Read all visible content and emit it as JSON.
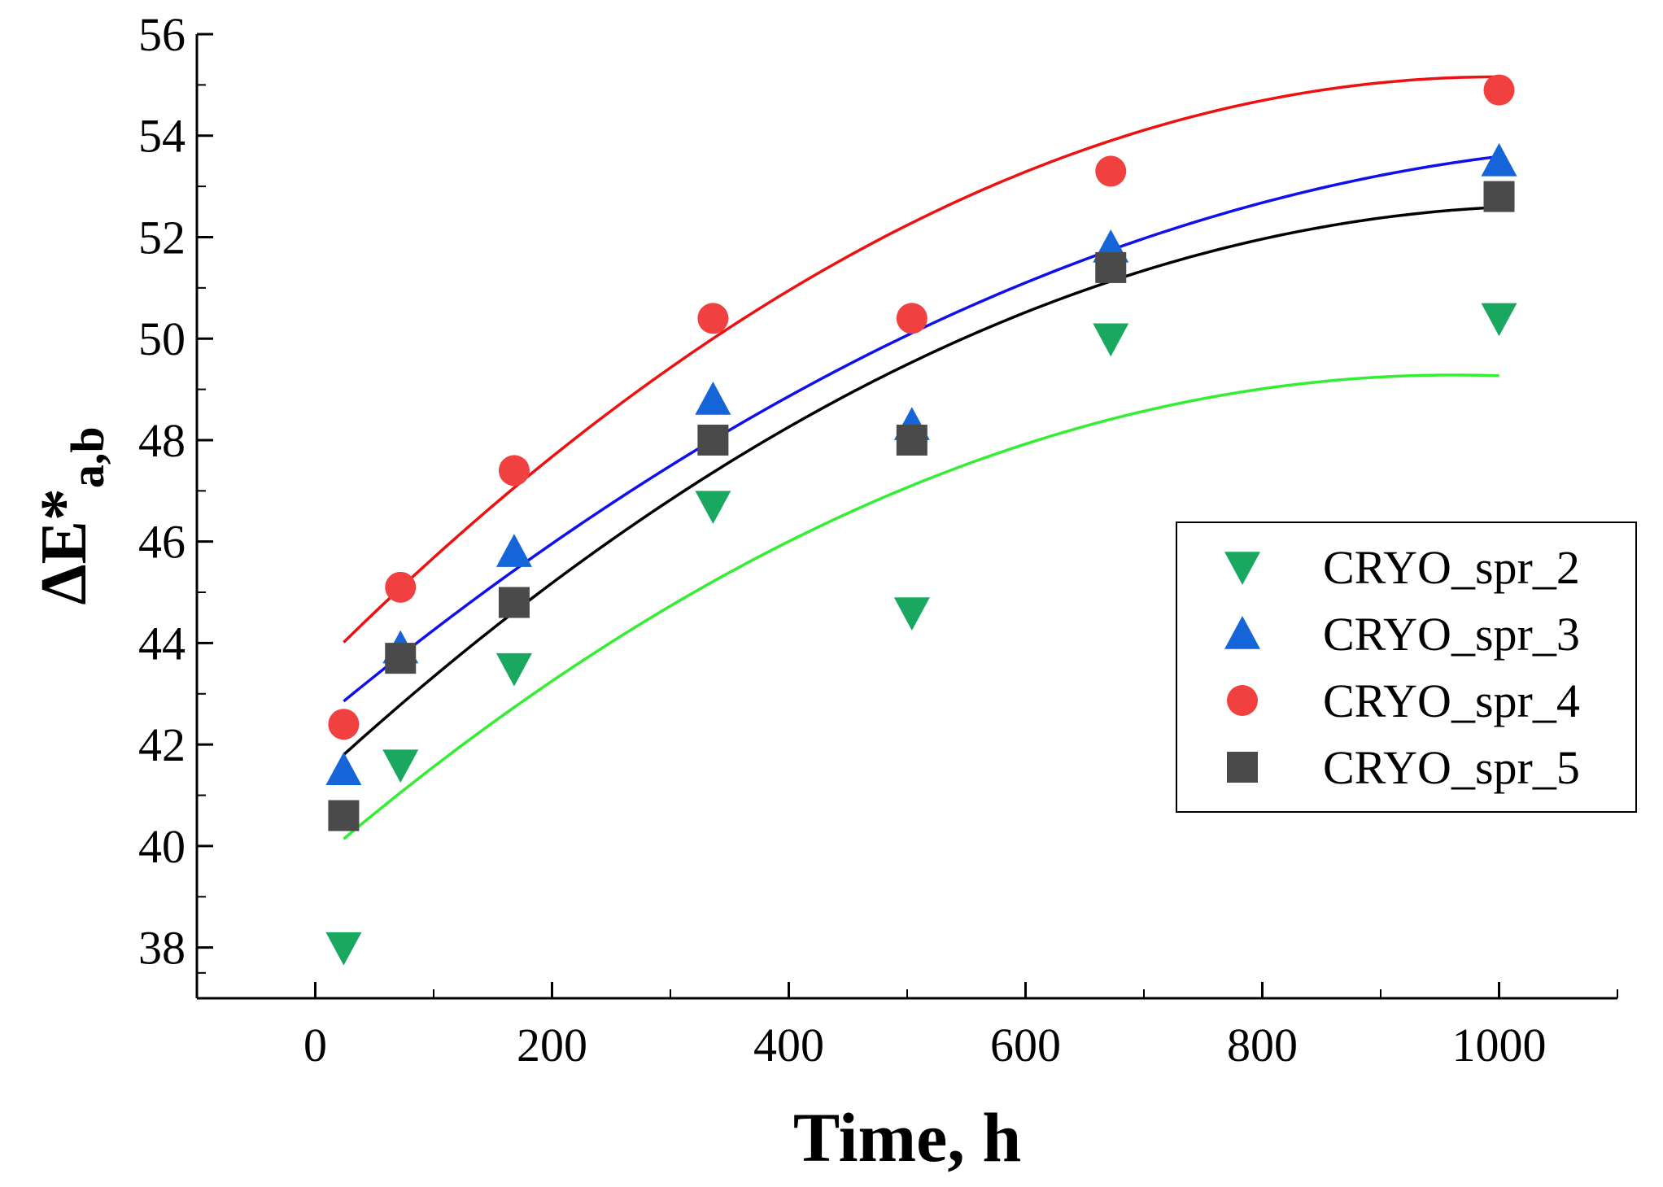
{
  "chart_data": {
    "type": "scatter",
    "xlabel": "Time, h",
    "ylabel_main": "ΔE*",
    "ylabel_sub": "a,b",
    "xlim": [
      -100,
      1100
    ],
    "ylim": [
      37,
      56
    ],
    "x_ticks": [
      0,
      200,
      400,
      600,
      800,
      1000
    ],
    "y_ticks": [
      38,
      40,
      42,
      44,
      46,
      48,
      50,
      52,
      54,
      56
    ],
    "x": [
      24,
      72,
      168,
      336,
      504,
      672,
      1000
    ],
    "fit_range": [
      24,
      1000
    ],
    "legend_position": "center-right",
    "series": [
      {
        "name": "CRYO_spr_2",
        "marker": "triangle-down",
        "marker_color": "#1aa860",
        "values": [
          38.0,
          41.6,
          43.5,
          46.7,
          44.6,
          50.0,
          50.4
        ],
        "fit_color": "#33ee33",
        "fit_poly": [
          39.667,
          0.02,
          -1.04e-05
        ]
      },
      {
        "name": "CRYO_spr_3",
        "marker": "triangle-up",
        "marker_color": "#1565d8",
        "values": [
          41.5,
          43.9,
          45.8,
          48.8,
          48.3,
          51.8,
          53.5
        ],
        "fit_color": "#1010ee",
        "fit_poly": [
          42.39,
          0.0195,
          -8.3e-06
        ]
      },
      {
        "name": "CRYO_spr_4",
        "marker": "circle",
        "marker_color": "#f04040",
        "values": [
          42.4,
          45.1,
          47.4,
          50.4,
          50.4,
          53.3,
          54.9
        ],
        "fit_color": "#ee1111",
        "fit_poly": [
          43.46,
          0.0234,
          -1.17e-05
        ]
      },
      {
        "name": "CRYO_spr_5",
        "marker": "square",
        "marker_color": "#4a4a4a",
        "values": [
          40.6,
          43.7,
          44.8,
          48.0,
          48.0,
          51.4,
          52.8
        ],
        "fit_color": "#000000",
        "fit_poly": [
          41.29,
          0.0215,
          -1.02e-05
        ]
      }
    ]
  }
}
